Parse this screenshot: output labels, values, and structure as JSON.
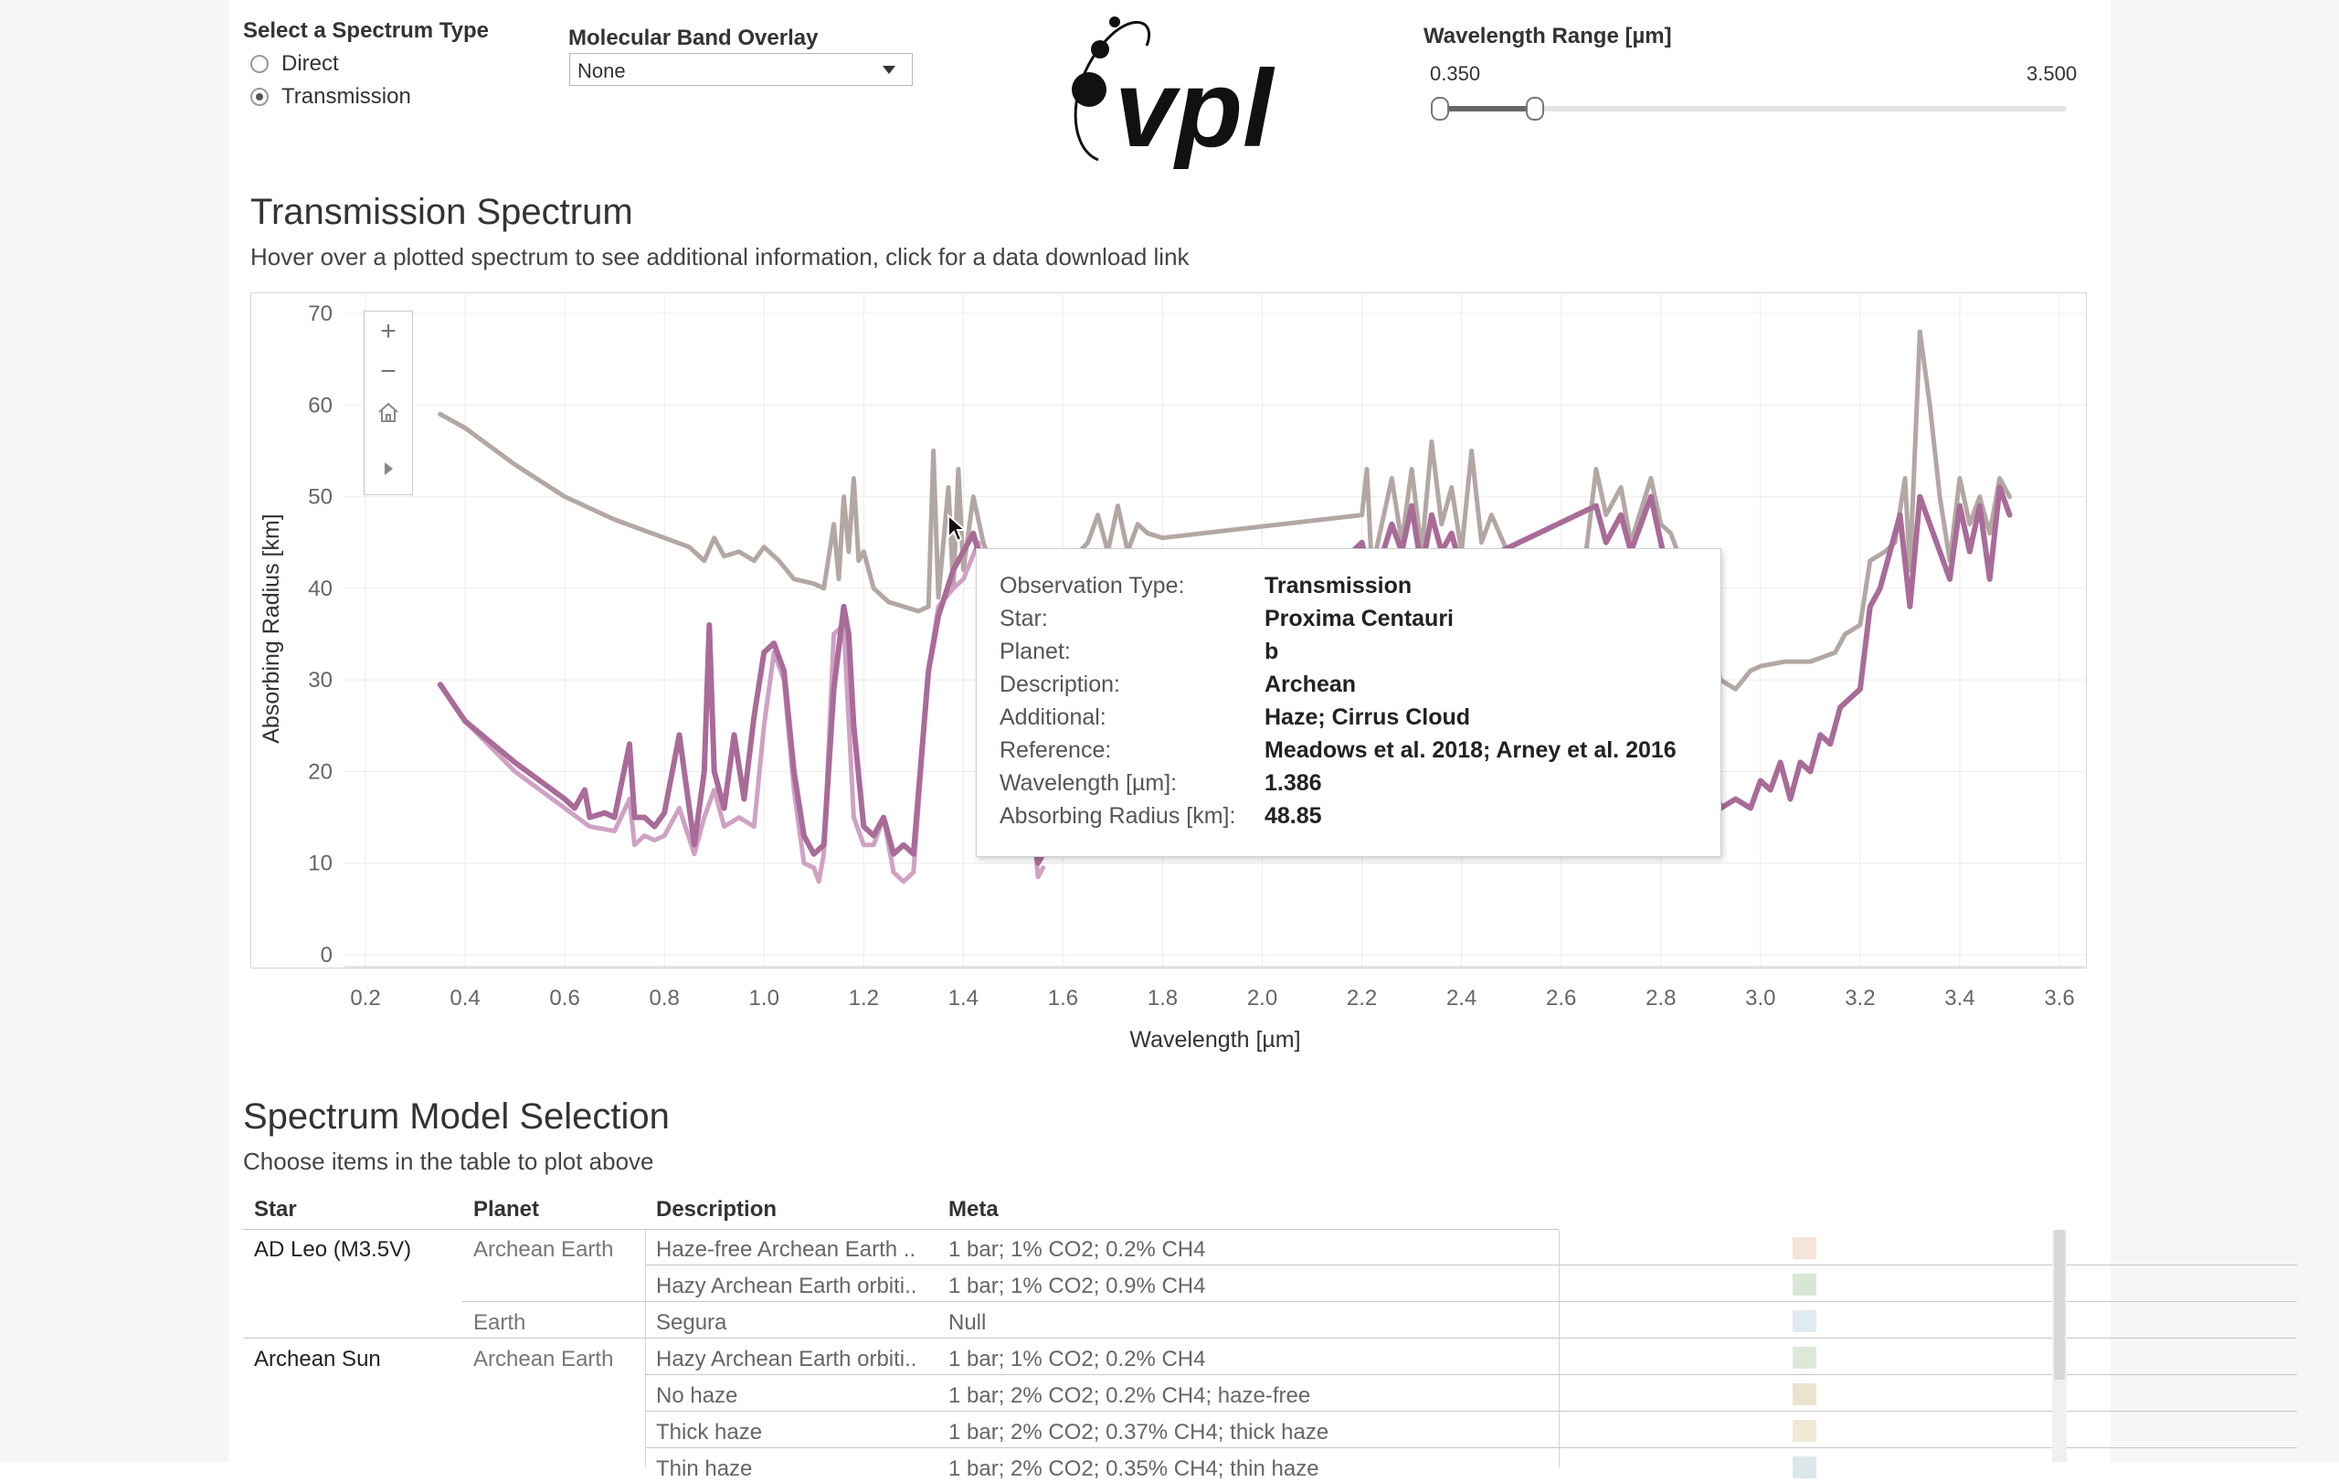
{
  "controls": {
    "spectrum_type_label": "Select a Spectrum Type",
    "options": [
      {
        "label": "Direct",
        "selected": false
      },
      {
        "label": "Transmission",
        "selected": true
      }
    ],
    "band_overlay_label": "Molecular Band Overlay",
    "band_overlay_value": "None",
    "logo_text": "vpl",
    "range_label": "Wavelength Range [µm]",
    "range_min": "0.350",
    "range_max": "3.500"
  },
  "chart_section": {
    "title": "Transmission Spectrum",
    "subtitle": "Hover over a plotted spectrum to see additional information, click for a data download link"
  },
  "chart_data": {
    "type": "line",
    "xlabel": "Wavelength [µm]",
    "ylabel": "Absorbing Radius [km]",
    "xlim": [
      0.2,
      3.6
    ],
    "ylim": [
      0,
      70
    ],
    "x_ticks": [
      "0.2",
      "0.4",
      "0.6",
      "0.8",
      "1.0",
      "1.2",
      "1.4",
      "1.6",
      "1.8",
      "2.0",
      "2.2",
      "2.4",
      "2.6",
      "2.8",
      "3.0",
      "3.2",
      "3.4",
      "3.6"
    ],
    "y_ticks": [
      "0",
      "10",
      "20",
      "30",
      "40",
      "50",
      "60",
      "70"
    ],
    "grid": true,
    "series": [
      {
        "color": "#b3a7a3",
        "width": 5,
        "points": [
          [
            0.35,
            59
          ],
          [
            0.4,
            57.5
          ],
          [
            0.5,
            53.5
          ],
          [
            0.6,
            50
          ],
          [
            0.7,
            47.5
          ],
          [
            0.8,
            45.5
          ],
          [
            0.85,
            44.5
          ],
          [
            0.88,
            43
          ],
          [
            0.9,
            45.5
          ],
          [
            0.92,
            43.5
          ],
          [
            0.95,
            44
          ],
          [
            0.98,
            43
          ],
          [
            1.0,
            44.5
          ],
          [
            1.03,
            43
          ],
          [
            1.06,
            41
          ],
          [
            1.1,
            40.5
          ],
          [
            1.12,
            40
          ],
          [
            1.14,
            47
          ],
          [
            1.15,
            41
          ],
          [
            1.16,
            50
          ],
          [
            1.17,
            44
          ],
          [
            1.18,
            52
          ],
          [
            1.19,
            43
          ],
          [
            1.2,
            44
          ],
          [
            1.22,
            40
          ],
          [
            1.25,
            38.5
          ],
          [
            1.28,
            38
          ],
          [
            1.31,
            37.5
          ],
          [
            1.33,
            38
          ],
          [
            1.34,
            55
          ],
          [
            1.35,
            39
          ],
          [
            1.37,
            51
          ],
          [
            1.38,
            40
          ],
          [
            1.39,
            53
          ],
          [
            1.4,
            42
          ],
          [
            1.42,
            50
          ],
          [
            1.44,
            45
          ],
          [
            1.47,
            40
          ],
          [
            1.5,
            36
          ],
          [
            1.65,
            45
          ],
          [
            1.67,
            48
          ],
          [
            1.69,
            44
          ],
          [
            1.71,
            49
          ],
          [
            1.73,
            44
          ],
          [
            1.75,
            47
          ],
          [
            1.77,
            46
          ],
          [
            1.8,
            45.5
          ],
          [
            2.2,
            48
          ],
          [
            2.21,
            53
          ],
          [
            2.22,
            42
          ],
          [
            2.26,
            52
          ],
          [
            2.28,
            45
          ],
          [
            2.3,
            53
          ],
          [
            2.32,
            44
          ],
          [
            2.34,
            56
          ],
          [
            2.36,
            47
          ],
          [
            2.38,
            51
          ],
          [
            2.4,
            44
          ],
          [
            2.42,
            55
          ],
          [
            2.44,
            45
          ],
          [
            2.46,
            48
          ],
          [
            2.5,
            43
          ],
          [
            2.65,
            44
          ],
          [
            2.67,
            53
          ],
          [
            2.69,
            48
          ],
          [
            2.72,
            51
          ],
          [
            2.74,
            45
          ],
          [
            2.78,
            52
          ],
          [
            2.8,
            47
          ],
          [
            2.82,
            46
          ],
          [
            2.9,
            34
          ],
          [
            2.92,
            30
          ],
          [
            2.95,
            29
          ],
          [
            2.98,
            31
          ],
          [
            3.0,
            31.5
          ],
          [
            3.05,
            32
          ],
          [
            3.1,
            32
          ],
          [
            3.15,
            33
          ],
          [
            3.17,
            35
          ],
          [
            3.2,
            36
          ],
          [
            3.22,
            43
          ],
          [
            3.25,
            44
          ],
          [
            3.27,
            45
          ],
          [
            3.29,
            52
          ],
          [
            3.3,
            42
          ],
          [
            3.32,
            68
          ],
          [
            3.34,
            60
          ],
          [
            3.36,
            50
          ],
          [
            3.38,
            43
          ],
          [
            3.4,
            52
          ],
          [
            3.42,
            47
          ],
          [
            3.44,
            50
          ],
          [
            3.46,
            46
          ],
          [
            3.48,
            52
          ],
          [
            3.5,
            50
          ]
        ]
      },
      {
        "color": "#cfa1c3",
        "width": 5,
        "points": [
          [
            0.35,
            29.5
          ],
          [
            0.4,
            25.5
          ],
          [
            0.5,
            20
          ],
          [
            0.6,
            16
          ],
          [
            0.65,
            14
          ],
          [
            0.7,
            13.5
          ],
          [
            0.73,
            17
          ],
          [
            0.74,
            12
          ],
          [
            0.76,
            13
          ],
          [
            0.78,
            12.5
          ],
          [
            0.8,
            13
          ],
          [
            0.83,
            16
          ],
          [
            0.86,
            11
          ],
          [
            0.88,
            15
          ],
          [
            0.9,
            18
          ],
          [
            0.92,
            14
          ],
          [
            0.95,
            15
          ],
          [
            0.98,
            14
          ],
          [
            1.0,
            25
          ],
          [
            1.02,
            33
          ],
          [
            1.04,
            30
          ],
          [
            1.06,
            18
          ],
          [
            1.08,
            10
          ],
          [
            1.1,
            9.5
          ],
          [
            1.11,
            8
          ],
          [
            1.12,
            11
          ],
          [
            1.14,
            35
          ],
          [
            1.16,
            36
          ],
          [
            1.18,
            15
          ],
          [
            1.2,
            12
          ],
          [
            1.22,
            12
          ],
          [
            1.24,
            15
          ],
          [
            1.26,
            9
          ],
          [
            1.28,
            8
          ],
          [
            1.3,
            9
          ],
          [
            1.33,
            31
          ],
          [
            1.35,
            38
          ],
          [
            1.38,
            40
          ],
          [
            1.4,
            41
          ],
          [
            1.43,
            45
          ],
          [
            1.46,
            36
          ],
          [
            1.48,
            30
          ],
          [
            1.5,
            25
          ],
          [
            1.52,
            22
          ],
          [
            1.54,
            14
          ],
          [
            1.55,
            8.5
          ],
          [
            1.56,
            9.5
          ]
        ]
      },
      {
        "color": "#a96b98",
        "width": 6,
        "points": [
          [
            0.35,
            29.5
          ],
          [
            0.4,
            25.5
          ],
          [
            0.5,
            21
          ],
          [
            0.6,
            17
          ],
          [
            0.62,
            16
          ],
          [
            0.64,
            18
          ],
          [
            0.65,
            15
          ],
          [
            0.68,
            15.5
          ],
          [
            0.7,
            15
          ],
          [
            0.73,
            23
          ],
          [
            0.74,
            15
          ],
          [
            0.76,
            15
          ],
          [
            0.78,
            14
          ],
          [
            0.8,
            15.5
          ],
          [
            0.83,
            24
          ],
          [
            0.86,
            12
          ],
          [
            0.88,
            20
          ],
          [
            0.89,
            36
          ],
          [
            0.9,
            20
          ],
          [
            0.92,
            16
          ],
          [
            0.94,
            24
          ],
          [
            0.96,
            17
          ],
          [
            0.98,
            26
          ],
          [
            1.0,
            33
          ],
          [
            1.02,
            34
          ],
          [
            1.04,
            31
          ],
          [
            1.06,
            20
          ],
          [
            1.08,
            13
          ],
          [
            1.1,
            11
          ],
          [
            1.12,
            12
          ],
          [
            1.14,
            29
          ],
          [
            1.16,
            38
          ],
          [
            1.17,
            35
          ],
          [
            1.18,
            25
          ],
          [
            1.2,
            14
          ],
          [
            1.22,
            13
          ],
          [
            1.24,
            15
          ],
          [
            1.26,
            11
          ],
          [
            1.28,
            12
          ],
          [
            1.3,
            11
          ],
          [
            1.33,
            31
          ],
          [
            1.35,
            37
          ],
          [
            1.38,
            42
          ],
          [
            1.4,
            44
          ],
          [
            1.42,
            46
          ],
          [
            1.45,
            40
          ],
          [
            1.48,
            30
          ],
          [
            1.5,
            26
          ],
          [
            1.52,
            21
          ],
          [
            1.55,
            10
          ],
          [
            1.56,
            11
          ],
          [
            2.2,
            45
          ],
          [
            2.22,
            40
          ],
          [
            2.26,
            47
          ],
          [
            2.28,
            44
          ],
          [
            2.3,
            49
          ],
          [
            2.32,
            42
          ],
          [
            2.34,
            48
          ],
          [
            2.36,
            44
          ],
          [
            2.38,
            46
          ],
          [
            2.4,
            42
          ],
          [
            2.67,
            49
          ],
          [
            2.69,
            45
          ],
          [
            2.72,
            48
          ],
          [
            2.74,
            44
          ],
          [
            2.78,
            50
          ],
          [
            2.8,
            45
          ],
          [
            2.9,
            20
          ],
          [
            2.92,
            16
          ],
          [
            2.95,
            17
          ],
          [
            2.98,
            16
          ],
          [
            3.0,
            19
          ],
          [
            3.02,
            18
          ],
          [
            3.04,
            21
          ],
          [
            3.06,
            17
          ],
          [
            3.08,
            21
          ],
          [
            3.1,
            20
          ],
          [
            3.12,
            24
          ],
          [
            3.14,
            23
          ],
          [
            3.16,
            27
          ],
          [
            3.18,
            28
          ],
          [
            3.2,
            29
          ],
          [
            3.22,
            38
          ],
          [
            3.24,
            40
          ],
          [
            3.26,
            44
          ],
          [
            3.28,
            48
          ],
          [
            3.3,
            38
          ],
          [
            3.32,
            50
          ],
          [
            3.34,
            47
          ],
          [
            3.36,
            44
          ],
          [
            3.38,
            41
          ],
          [
            3.4,
            49
          ],
          [
            3.42,
            44
          ],
          [
            3.44,
            49
          ],
          [
            3.46,
            41
          ],
          [
            3.48,
            51
          ],
          [
            3.5,
            48
          ]
        ]
      }
    ]
  },
  "tooltip": {
    "rows": [
      {
        "key": "Observation Type:",
        "value": "Transmission"
      },
      {
        "key": "Star:",
        "value": "Proxima Centauri"
      },
      {
        "key": "Planet:",
        "value": "b"
      },
      {
        "key": "Description:",
        "value": "Archean"
      },
      {
        "key": "Additional:",
        "value": "Haze; Cirrus Cloud"
      },
      {
        "key": "Reference:",
        "value": "Meadows et al. 2018; Arney et al. 2016"
      },
      {
        "key": "Wavelength [µm]:",
        "value": "1.386"
      },
      {
        "key": "Absorbing Radius [km]:",
        "value": "48.85"
      }
    ]
  },
  "table_section": {
    "title": "Spectrum Model Selection",
    "subtitle": "Choose items in the table to plot above",
    "headers": {
      "star": "Star",
      "planet": "Planet",
      "description": "Description",
      "meta": "Meta"
    },
    "rows": [
      {
        "star": "AD Leo (M3.5V)",
        "planet": "Archean Earth",
        "description": "Haze-free Archean Earth ..",
        "meta": "1 bar; 1% CO2; 0.2% CH4",
        "swatch": "#f6e4d9"
      },
      {
        "star": "",
        "planet": "",
        "description": "Hazy Archean Earth orbiti..",
        "meta": "1 bar; 1% CO2; 0.9% CH4",
        "swatch": "#d8e6d4"
      },
      {
        "star": "",
        "planet": "Earth",
        "description": "Segura",
        "meta": "Null",
        "swatch": "#e0eaf2"
      },
      {
        "star": "Archean Sun",
        "planet": "Archean Earth",
        "description": "Hazy Archean Earth orbiti..",
        "meta": "1 bar; 1% CO2; 0.2% CH4",
        "swatch": "#dde9d8"
      },
      {
        "star": "",
        "planet": "",
        "description": "No haze",
        "meta": "1 bar; 2% CO2; 0.2% CH4; haze-free",
        "swatch": "#ece3cf"
      },
      {
        "star": "",
        "planet": "",
        "description": "Thick haze",
        "meta": "1 bar; 2% CO2; 0.37% CH4; thick haze",
        "swatch": "#f1e8d6"
      },
      {
        "star": "",
        "planet": "",
        "description": "Thin haze",
        "meta": "1 bar; 2% CO2; 0.35% CH4; thin haze",
        "swatch": "#dbe8ea"
      }
    ]
  }
}
